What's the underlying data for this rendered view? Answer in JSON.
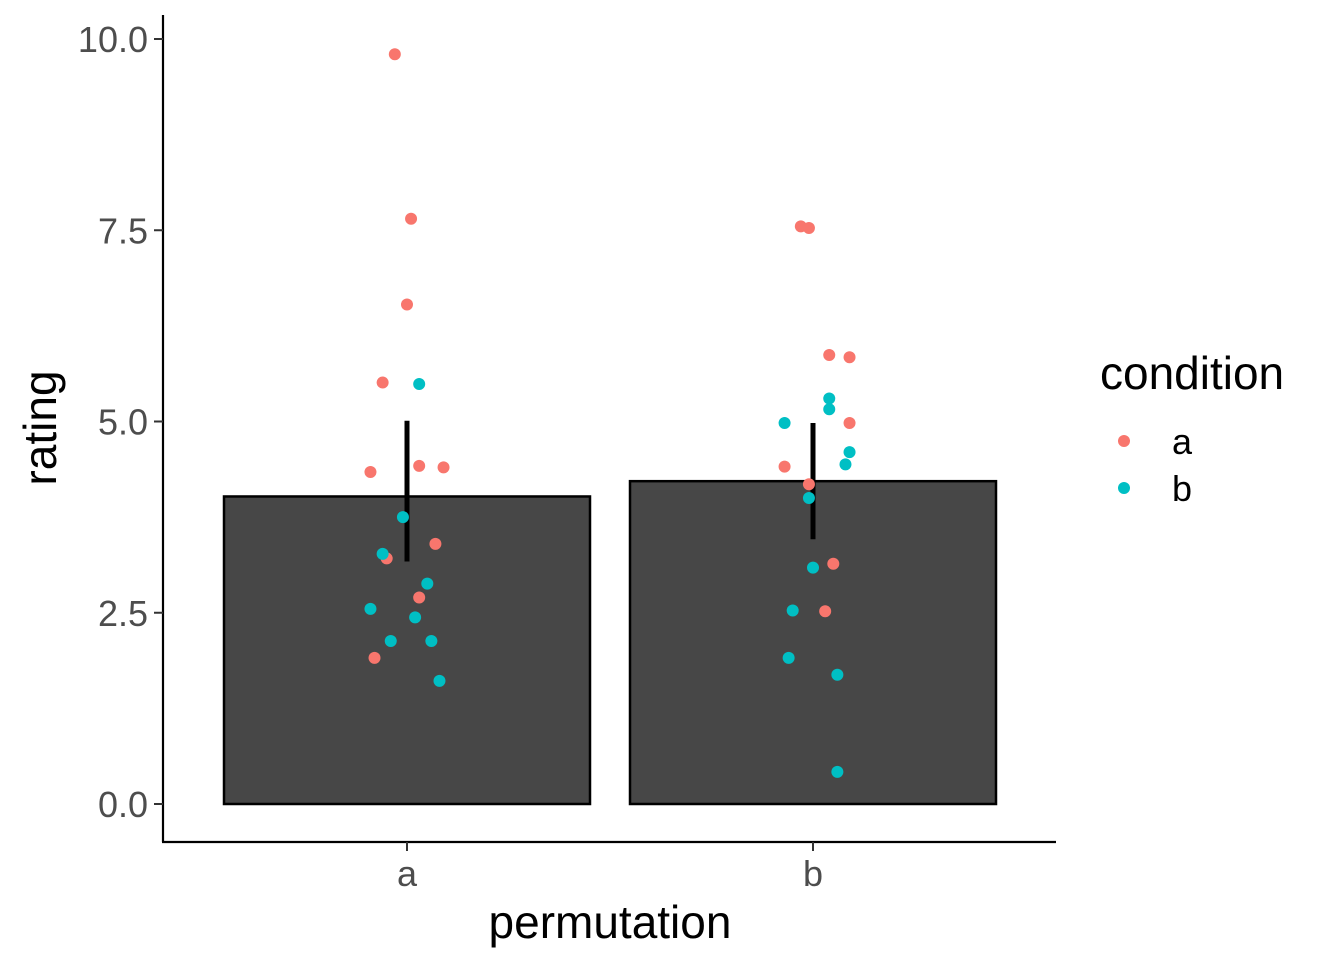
{
  "chart_data": {
    "type": "bar",
    "xlabel": "permutation",
    "ylabel": "rating",
    "categories": [
      "a",
      "b"
    ],
    "ylim": [
      0,
      10
    ],
    "yticks": [
      "0.0",
      "2.5",
      "5.0",
      "7.5",
      "10.0"
    ],
    "grid": false,
    "bars": [
      {
        "category": "a",
        "mean": 4.02,
        "ci_low": 3.17,
        "ci_high": 5.01
      },
      {
        "category": "b",
        "mean": 4.22,
        "ci_low": 3.46,
        "ci_high": 4.98
      }
    ],
    "legend": {
      "title": "condition",
      "placement": "right",
      "entries": [
        {
          "label": "a",
          "color": "#F8766D"
        },
        {
          "label": "b",
          "color": "#00BFC4"
        }
      ]
    },
    "points": [
      {
        "permutation": "a",
        "condition": "a",
        "offset": -0.03,
        "y": 9.8
      },
      {
        "permutation": "a",
        "condition": "a",
        "offset": 0.01,
        "y": 7.65
      },
      {
        "permutation": "a",
        "condition": "a",
        "offset": 0.0,
        "y": 6.53
      },
      {
        "permutation": "a",
        "condition": "a",
        "offset": -0.06,
        "y": 5.51
      },
      {
        "permutation": "a",
        "condition": "a",
        "offset": 0.03,
        "y": 4.42
      },
      {
        "permutation": "a",
        "condition": "a",
        "offset": 0.09,
        "y": 4.4
      },
      {
        "permutation": "a",
        "condition": "a",
        "offset": -0.09,
        "y": 4.34
      },
      {
        "permutation": "a",
        "condition": "a",
        "offset": 0.07,
        "y": 3.4
      },
      {
        "permutation": "a",
        "condition": "a",
        "offset": -0.05,
        "y": 3.21
      },
      {
        "permutation": "a",
        "condition": "a",
        "offset": 0.03,
        "y": 2.7
      },
      {
        "permutation": "a",
        "condition": "a",
        "offset": -0.08,
        "y": 1.91
      },
      {
        "permutation": "a",
        "condition": "b",
        "offset": 0.03,
        "y": 5.49
      },
      {
        "permutation": "a",
        "condition": "b",
        "offset": -0.01,
        "y": 3.75
      },
      {
        "permutation": "a",
        "condition": "b",
        "offset": -0.06,
        "y": 3.27
      },
      {
        "permutation": "a",
        "condition": "b",
        "offset": 0.05,
        "y": 2.88
      },
      {
        "permutation": "a",
        "condition": "b",
        "offset": -0.09,
        "y": 2.55
      },
      {
        "permutation": "a",
        "condition": "b",
        "offset": 0.02,
        "y": 2.44
      },
      {
        "permutation": "a",
        "condition": "b",
        "offset": -0.04,
        "y": 2.13
      },
      {
        "permutation": "a",
        "condition": "b",
        "offset": 0.06,
        "y": 2.13
      },
      {
        "permutation": "a",
        "condition": "b",
        "offset": 0.08,
        "y": 1.61
      },
      {
        "permutation": "b",
        "condition": "a",
        "offset": -0.03,
        "y": 7.55
      },
      {
        "permutation": "b",
        "condition": "a",
        "offset": -0.01,
        "y": 7.53
      },
      {
        "permutation": "b",
        "condition": "a",
        "offset": 0.04,
        "y": 5.87
      },
      {
        "permutation": "b",
        "condition": "a",
        "offset": 0.09,
        "y": 5.84
      },
      {
        "permutation": "b",
        "condition": "a",
        "offset": 0.09,
        "y": 4.98
      },
      {
        "permutation": "b",
        "condition": "a",
        "offset": -0.07,
        "y": 4.41
      },
      {
        "permutation": "b",
        "condition": "a",
        "offset": -0.01,
        "y": 4.18
      },
      {
        "permutation": "b",
        "condition": "a",
        "offset": 0.05,
        "y": 3.14
      },
      {
        "permutation": "b",
        "condition": "a",
        "offset": 0.03,
        "y": 2.52
      },
      {
        "permutation": "b",
        "condition": "b",
        "offset": 0.04,
        "y": 5.3
      },
      {
        "permutation": "b",
        "condition": "b",
        "offset": 0.04,
        "y": 5.16
      },
      {
        "permutation": "b",
        "condition": "b",
        "offset": -0.07,
        "y": 4.98
      },
      {
        "permutation": "b",
        "condition": "b",
        "offset": 0.09,
        "y": 4.6
      },
      {
        "permutation": "b",
        "condition": "b",
        "offset": 0.08,
        "y": 4.44
      },
      {
        "permutation": "b",
        "condition": "b",
        "offset": -0.01,
        "y": 4.0
      },
      {
        "permutation": "b",
        "condition": "b",
        "offset": 0.0,
        "y": 3.09
      },
      {
        "permutation": "b",
        "condition": "b",
        "offset": -0.05,
        "y": 2.53
      },
      {
        "permutation": "b",
        "condition": "b",
        "offset": -0.06,
        "y": 1.91
      },
      {
        "permutation": "b",
        "condition": "b",
        "offset": 0.06,
        "y": 1.69
      },
      {
        "permutation": "b",
        "condition": "b",
        "offset": 0.06,
        "y": 0.42
      }
    ]
  }
}
